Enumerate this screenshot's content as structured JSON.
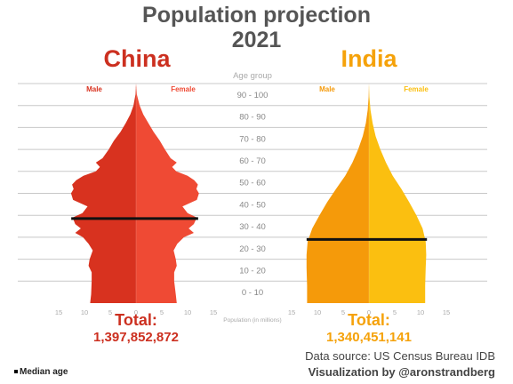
{
  "title_line1": "Population projection",
  "title_line2": "2021",
  "chart_data": {
    "type": "population_pyramid",
    "x_axis_label": "Population (in millions)",
    "x_ticks": [
      15,
      10,
      5,
      0,
      5,
      10,
      15
    ],
    "x_range": [
      -15,
      15
    ],
    "y_axis_label": "Age group",
    "y_groups": [
      "0 - 10",
      "10 - 20",
      "20 - 30",
      "30 - 40",
      "40 - 50",
      "50 - 60",
      "60 - 70",
      "70 - 80",
      "80 - 90",
      "90 - 100"
    ],
    "age_range": [
      0,
      100
    ],
    "panels": [
      {
        "name": "China",
        "male_label": "Male",
        "female_label": "Female",
        "male_color": "#d8321f",
        "female_color": "#ef4a34",
        "total_label": "Total:",
        "total": "1,397,852,872",
        "median_age": 38.5,
        "male_profile": [
          [
            0,
            8.9
          ],
          [
            4,
            8.7
          ],
          [
            10,
            8.6
          ],
          [
            14,
            8.6
          ],
          [
            17,
            9.2
          ],
          [
            20,
            9.0
          ],
          [
            24,
            8.4
          ],
          [
            27,
            9.2
          ],
          [
            30,
            10.3
          ],
          [
            32,
            11.8
          ],
          [
            34,
            10.7
          ],
          [
            36,
            11.8
          ],
          [
            39,
            12.3
          ],
          [
            41,
            10.4
          ],
          [
            44,
            9.4
          ],
          [
            47,
            12.2
          ],
          [
            50,
            12.6
          ],
          [
            52,
            12.1
          ],
          [
            54,
            12.4
          ],
          [
            56,
            11.6
          ],
          [
            58,
            10.2
          ],
          [
            60,
            7.8
          ],
          [
            62,
            7.0
          ],
          [
            64,
            7.8
          ],
          [
            66,
            6.5
          ],
          [
            70,
            5.3
          ],
          [
            74,
            4.3
          ],
          [
            78,
            3.0
          ],
          [
            82,
            2.0
          ],
          [
            86,
            1.1
          ],
          [
            90,
            0.5
          ],
          [
            95,
            0.1
          ],
          [
            100,
            0
          ]
        ],
        "female_profile": [
          [
            0,
            7.9
          ],
          [
            4,
            7.7
          ],
          [
            10,
            7.4
          ],
          [
            14,
            7.4
          ],
          [
            17,
            7.9
          ],
          [
            20,
            7.7
          ],
          [
            24,
            7.3
          ],
          [
            27,
            8.0
          ],
          [
            30,
            9.3
          ],
          [
            32,
            11.2
          ],
          [
            34,
            10.2
          ],
          [
            36,
            11.2
          ],
          [
            39,
            11.8
          ],
          [
            41,
            10.0
          ],
          [
            44,
            9.0
          ],
          [
            47,
            11.8
          ],
          [
            50,
            12.2
          ],
          [
            52,
            11.7
          ],
          [
            54,
            12.0
          ],
          [
            56,
            11.3
          ],
          [
            58,
            10.0
          ],
          [
            60,
            7.8
          ],
          [
            62,
            7.0
          ],
          [
            64,
            7.9
          ],
          [
            66,
            6.7
          ],
          [
            70,
            5.6
          ],
          [
            74,
            4.6
          ],
          [
            78,
            3.4
          ],
          [
            82,
            2.4
          ],
          [
            86,
            1.4
          ],
          [
            90,
            0.7
          ],
          [
            95,
            0.15
          ],
          [
            100,
            0
          ]
        ]
      },
      {
        "name": "India",
        "male_label": "Male",
        "female_label": "Female",
        "male_color": "#f59a0a",
        "female_color": "#fbbf10",
        "total_label": "Total:",
        "total": "1,340,451,141",
        "median_age": 29.0,
        "male_profile": [
          [
            0,
            12.0
          ],
          [
            8,
            12.0
          ],
          [
            16,
            12.1
          ],
          [
            22,
            12.1
          ],
          [
            28,
            11.9
          ],
          [
            34,
            11.0
          ],
          [
            40,
            9.6
          ],
          [
            46,
            8.1
          ],
          [
            52,
            6.4
          ],
          [
            58,
            4.6
          ],
          [
            64,
            3.2
          ],
          [
            70,
            2.1
          ],
          [
            76,
            1.2
          ],
          [
            82,
            0.6
          ],
          [
            88,
            0.25
          ],
          [
            94,
            0.07
          ],
          [
            100,
            0
          ]
        ],
        "female_profile": [
          [
            0,
            10.9
          ],
          [
            8,
            10.9
          ],
          [
            16,
            11.0
          ],
          [
            22,
            11.1
          ],
          [
            28,
            11.0
          ],
          [
            34,
            10.4
          ],
          [
            40,
            9.2
          ],
          [
            46,
            7.8
          ],
          [
            52,
            6.3
          ],
          [
            58,
            4.6
          ],
          [
            64,
            3.3
          ],
          [
            70,
            2.2
          ],
          [
            76,
            1.3
          ],
          [
            82,
            0.7
          ],
          [
            88,
            0.3
          ],
          [
            94,
            0.08
          ],
          [
            100,
            0
          ]
        ]
      }
    ],
    "median_line_color": "#111111",
    "legend": "Median age"
  },
  "footer": {
    "source": "Data source: US Census Bureau IDB",
    "credit": "Visualization by @aronstrandberg",
    "median_legend": "Median age"
  }
}
